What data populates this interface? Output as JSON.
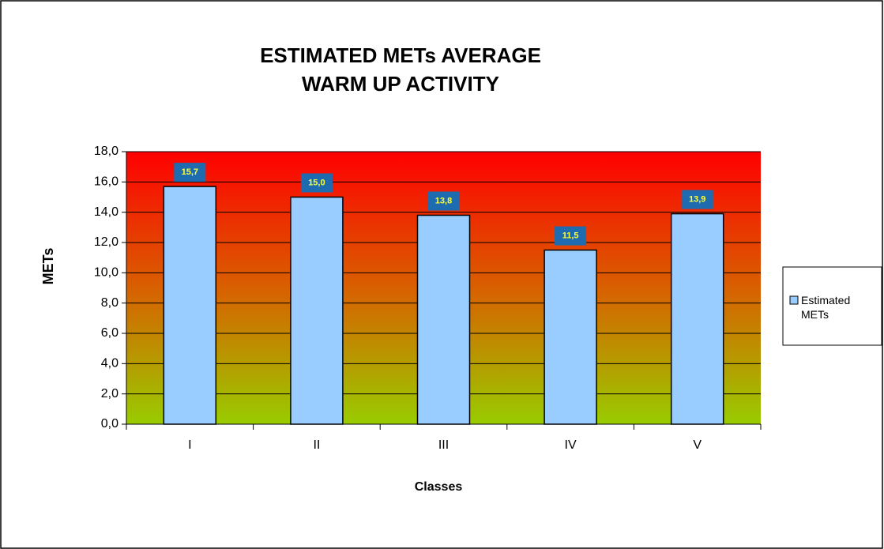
{
  "chart_data": {
    "type": "bar",
    "title": [
      "ESTIMATED  METs  AVERAGE",
      "WARM UP ACTIVITY"
    ],
    "x_label": "Classes",
    "y_label": "METs",
    "categories": [
      "I",
      "II",
      "III",
      "IV",
      "V"
    ],
    "series": [
      {
        "name": "Estimated METs",
        "color": "#99ccff",
        "values": [
          15.7,
          15.0,
          13.8,
          11.5,
          13.9
        ],
        "value_labels": [
          "15,7",
          "15,0",
          "13,8",
          "11,5",
          "13,9"
        ]
      }
    ],
    "ylim": [
      0,
      18
    ],
    "yticks": [
      {
        "value": 0,
        "label": "0,0"
      },
      {
        "value": 2,
        "label": "2,0"
      },
      {
        "value": 4,
        "label": "4,0"
      },
      {
        "value": 6,
        "label": "6,0"
      },
      {
        "value": 8,
        "label": "8,0"
      },
      {
        "value": 10,
        "label": "10,0"
      },
      {
        "value": 12,
        "label": "12,0"
      },
      {
        "value": 14,
        "label": "14,0"
      },
      {
        "value": 16,
        "label": "16,0"
      },
      {
        "value": 18,
        "label": "18,0"
      }
    ],
    "grid": true,
    "legend": "right"
  }
}
